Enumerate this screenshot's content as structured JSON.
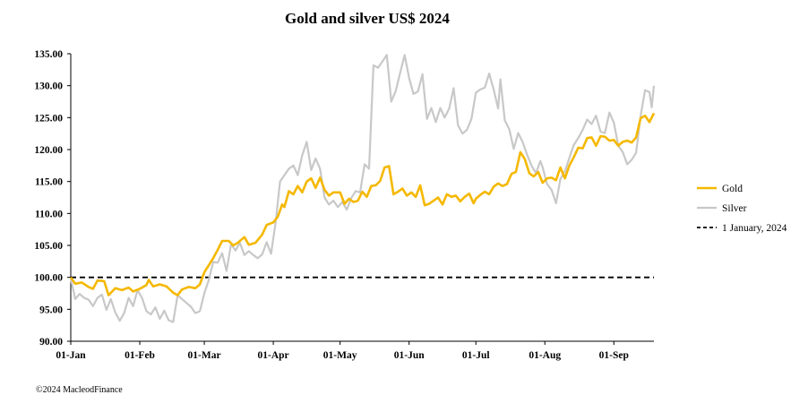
{
  "chart_data": {
    "type": "line",
    "title": "Gold and silver  US$ 2024",
    "xlabel": "",
    "ylabel": "",
    "ylim": [
      90,
      135
    ],
    "yticks": [
      "90.00",
      "95.00",
      "100.00",
      "105.00",
      "110.00",
      "115.00",
      "120.00",
      "125.00",
      "130.00",
      "135.00"
    ],
    "ytick_values": [
      90,
      95,
      100,
      105,
      110,
      115,
      120,
      125,
      130,
      135
    ],
    "xlim_day": [
      0,
      262
    ],
    "xticks": [
      {
        "label": "01-Jan",
        "day": 0
      },
      {
        "label": "01-Feb",
        "day": 31
      },
      {
        "label": "01-Mar",
        "day": 60
      },
      {
        "label": "01-Apr",
        "day": 91
      },
      {
        "label": "01-May",
        "day": 121
      },
      {
        "label": "01-Jun",
        "day": 152
      },
      {
        "label": "01-Jul",
        "day": 182
      },
      {
        "label": "01-Aug",
        "day": 213
      },
      {
        "label": "01-Sep",
        "day": 244
      }
    ],
    "series": [
      {
        "name": "Gold",
        "color": "#f5b800",
        "points": [
          [
            0,
            100
          ],
          [
            2,
            99
          ],
          [
            5,
            99.2
          ],
          [
            8,
            98.5
          ],
          [
            10,
            98.2
          ],
          [
            12,
            99.5
          ],
          [
            15,
            99.4
          ],
          [
            17,
            97.2
          ],
          [
            20,
            98.3
          ],
          [
            23,
            98
          ],
          [
            26,
            98.4
          ],
          [
            28,
            97.8
          ],
          [
            31,
            98.2
          ],
          [
            34,
            98.8
          ],
          [
            35,
            99.6
          ],
          [
            37,
            98.6
          ],
          [
            40,
            98.9
          ],
          [
            43,
            98.6
          ],
          [
            46,
            97.6
          ],
          [
            48,
            97.2
          ],
          [
            50,
            98.1
          ],
          [
            53,
            98.5
          ],
          [
            56,
            98.3
          ],
          [
            58,
            98.9
          ],
          [
            60,
            100.8
          ],
          [
            62,
            101.9
          ],
          [
            64,
            103
          ],
          [
            66,
            104.3
          ],
          [
            68,
            105.7
          ],
          [
            71,
            105.7
          ],
          [
            73,
            105
          ],
          [
            75,
            105.4
          ],
          [
            78,
            106.3
          ],
          [
            80,
            105.1
          ],
          [
            83,
            105.4
          ],
          [
            86,
            106.7
          ],
          [
            88,
            108.2
          ],
          [
            91,
            108.6
          ],
          [
            93,
            109.5
          ],
          [
            95,
            111.4
          ],
          [
            96,
            111
          ],
          [
            98,
            113.5
          ],
          [
            100,
            113
          ],
          [
            102,
            114.3
          ],
          [
            104,
            113.3
          ],
          [
            106,
            115
          ],
          [
            108,
            115.5
          ],
          [
            110,
            114
          ],
          [
            112,
            115.6
          ],
          [
            114,
            113.7
          ],
          [
            116,
            112.8
          ],
          [
            118,
            113.3
          ],
          [
            121,
            113.3
          ],
          [
            123,
            111.5
          ],
          [
            125,
            112.3
          ],
          [
            127,
            111.8
          ],
          [
            129,
            112
          ],
          [
            131,
            113.4
          ],
          [
            133,
            112.6
          ],
          [
            135,
            114.3
          ],
          [
            137,
            114.4
          ],
          [
            139,
            115.1
          ],
          [
            141,
            117.2
          ],
          [
            143,
            117.4
          ],
          [
            145,
            113
          ],
          [
            147,
            113.4
          ],
          [
            149,
            113.9
          ],
          [
            151,
            112.8
          ],
          [
            153,
            113.3
          ],
          [
            155,
            112.6
          ],
          [
            157,
            114.4
          ],
          [
            159,
            111.3
          ],
          [
            161,
            111.5
          ],
          [
            163,
            112
          ],
          [
            165,
            112.5
          ],
          [
            167,
            111.4
          ],
          [
            169,
            113
          ],
          [
            171,
            112.6
          ],
          [
            173,
            112.8
          ],
          [
            175,
            111.9
          ],
          [
            177,
            112.6
          ],
          [
            179,
            113.1
          ],
          [
            181,
            111.6
          ],
          [
            182,
            112.3
          ],
          [
            184,
            112.9
          ],
          [
            186,
            113.4
          ],
          [
            188,
            113
          ],
          [
            190,
            114.2
          ],
          [
            192,
            114.7
          ],
          [
            194,
            114.3
          ],
          [
            196,
            114.6
          ],
          [
            198,
            116.2
          ],
          [
            200,
            116.5
          ],
          [
            202,
            119.6
          ],
          [
            204,
            118.5
          ],
          [
            206,
            116.3
          ],
          [
            208,
            115.8
          ],
          [
            210,
            116.5
          ],
          [
            212,
            114.8
          ],
          [
            214,
            115.5
          ],
          [
            216,
            115.6
          ],
          [
            218,
            115.2
          ],
          [
            220,
            117.2
          ],
          [
            222,
            115.5
          ],
          [
            224,
            117.5
          ],
          [
            226,
            118.8
          ],
          [
            228,
            120.3
          ],
          [
            230,
            120.2
          ],
          [
            232,
            121.8
          ],
          [
            234,
            121.9
          ],
          [
            236,
            120.6
          ],
          [
            238,
            122.1
          ],
          [
            240,
            122
          ],
          [
            242,
            121.4
          ],
          [
            244,
            121.5
          ],
          [
            246,
            120.6
          ],
          [
            248,
            121.2
          ],
          [
            250,
            121.4
          ],
          [
            252,
            121.1
          ],
          [
            254,
            121.9
          ],
          [
            256,
            124.9
          ],
          [
            258,
            125.3
          ],
          [
            260,
            124.3
          ],
          [
            262,
            125.7
          ]
        ]
      },
      {
        "name": "Silver",
        "color": "#c8c8c8",
        "points": [
          [
            0,
            99.8
          ],
          [
            2,
            96.6
          ],
          [
            4,
            97.4
          ],
          [
            6,
            96.8
          ],
          [
            8,
            96.5
          ],
          [
            10,
            95.5
          ],
          [
            12,
            96.8
          ],
          [
            14,
            97.3
          ],
          [
            16,
            94.9
          ],
          [
            18,
            96.6
          ],
          [
            20,
            94.5
          ],
          [
            22,
            93.2
          ],
          [
            24,
            94.4
          ],
          [
            26,
            96.8
          ],
          [
            28,
            95.5
          ],
          [
            30,
            98
          ],
          [
            32,
            96.8
          ],
          [
            34,
            94.7
          ],
          [
            36,
            94.2
          ],
          [
            38,
            95.3
          ],
          [
            40,
            93.5
          ],
          [
            42,
            94.8
          ],
          [
            44,
            93.3
          ],
          [
            46,
            93
          ],
          [
            48,
            97.2
          ],
          [
            50,
            96.6
          ],
          [
            52,
            96
          ],
          [
            54,
            95.4
          ],
          [
            56,
            94.4
          ],
          [
            58,
            94.7
          ],
          [
            60,
            97.5
          ],
          [
            62,
            99.6
          ],
          [
            64,
            102.4
          ],
          [
            66,
            102.3
          ],
          [
            68,
            103.8
          ],
          [
            70,
            101
          ],
          [
            72,
            105.2
          ],
          [
            74,
            104.2
          ],
          [
            76,
            105.4
          ],
          [
            78,
            103.5
          ],
          [
            80,
            104.1
          ],
          [
            82,
            103.5
          ],
          [
            84,
            103
          ],
          [
            86,
            103.6
          ],
          [
            88,
            105.5
          ],
          [
            90,
            103.7
          ],
          [
            92,
            108.5
          ],
          [
            94,
            115
          ],
          [
            96,
            116
          ],
          [
            98,
            117
          ],
          [
            100,
            117.5
          ],
          [
            102,
            116
          ],
          [
            104,
            119.1
          ],
          [
            106,
            121.2
          ],
          [
            108,
            116.8
          ],
          [
            110,
            118.6
          ],
          [
            112,
            117
          ],
          [
            114,
            112.5
          ],
          [
            116,
            111.4
          ],
          [
            118,
            112
          ],
          [
            120,
            111
          ],
          [
            122,
            111.8
          ],
          [
            124,
            110.6
          ],
          [
            126,
            112.4
          ],
          [
            128,
            113.5
          ],
          [
            130,
            113.3
          ],
          [
            132,
            117.7
          ],
          [
            134,
            117
          ],
          [
            136,
            133.2
          ],
          [
            138,
            132.8
          ],
          [
            140,
            133.8
          ],
          [
            142,
            134.8
          ],
          [
            144,
            127.5
          ],
          [
            146,
            129.2
          ],
          [
            148,
            132
          ],
          [
            150,
            134.8
          ],
          [
            152,
            131.2
          ],
          [
            154,
            128.7
          ],
          [
            156,
            129.1
          ],
          [
            158,
            131.8
          ],
          [
            160,
            124.8
          ],
          [
            162,
            126.5
          ],
          [
            164,
            124.3
          ],
          [
            166,
            126.5
          ],
          [
            168,
            125
          ],
          [
            170,
            126.4
          ],
          [
            172,
            129.6
          ],
          [
            174,
            123.8
          ],
          [
            176,
            122.5
          ],
          [
            178,
            123.1
          ],
          [
            180,
            124.8
          ],
          [
            182,
            128.9
          ],
          [
            184,
            129.4
          ],
          [
            186,
            129.7
          ],
          [
            188,
            131.9
          ],
          [
            190,
            129.4
          ],
          [
            192,
            126.4
          ],
          [
            193,
            131
          ],
          [
            195,
            124.6
          ],
          [
            197,
            123.2
          ],
          [
            199,
            120.1
          ],
          [
            201,
            122.6
          ],
          [
            203,
            121.2
          ],
          [
            205,
            119.2
          ],
          [
            207,
            117.5
          ],
          [
            209,
            116.3
          ],
          [
            211,
            118.2
          ],
          [
            212,
            117.2
          ],
          [
            214,
            114.6
          ],
          [
            216,
            113.7
          ],
          [
            218,
            111.6
          ],
          [
            220,
            115.4
          ],
          [
            222,
            116.6
          ],
          [
            224,
            118.7
          ],
          [
            226,
            120.7
          ],
          [
            228,
            121.8
          ],
          [
            230,
            123.1
          ],
          [
            232,
            124.7
          ],
          [
            234,
            124
          ],
          [
            236,
            125.3
          ],
          [
            238,
            122.8
          ],
          [
            240,
            122.6
          ],
          [
            242,
            125.8
          ],
          [
            244,
            124.2
          ],
          [
            246,
            120.6
          ],
          [
            248,
            119.6
          ],
          [
            250,
            117.7
          ],
          [
            252,
            118.4
          ],
          [
            254,
            119.5
          ],
          [
            256,
            125.2
          ],
          [
            258,
            129.3
          ],
          [
            260,
            129
          ],
          [
            261,
            126.6
          ],
          [
            262,
            130
          ]
        ]
      },
      {
        "name": "1 January, 2024",
        "color": "#000000",
        "style": "dashed",
        "value": 100
      }
    ],
    "legend": {
      "placement": "right",
      "entries": [
        "Gold",
        "Silver",
        "1 January, 2024"
      ]
    },
    "grid": false
  },
  "footer": {
    "copyright": "©2024 MacleodFinance"
  }
}
